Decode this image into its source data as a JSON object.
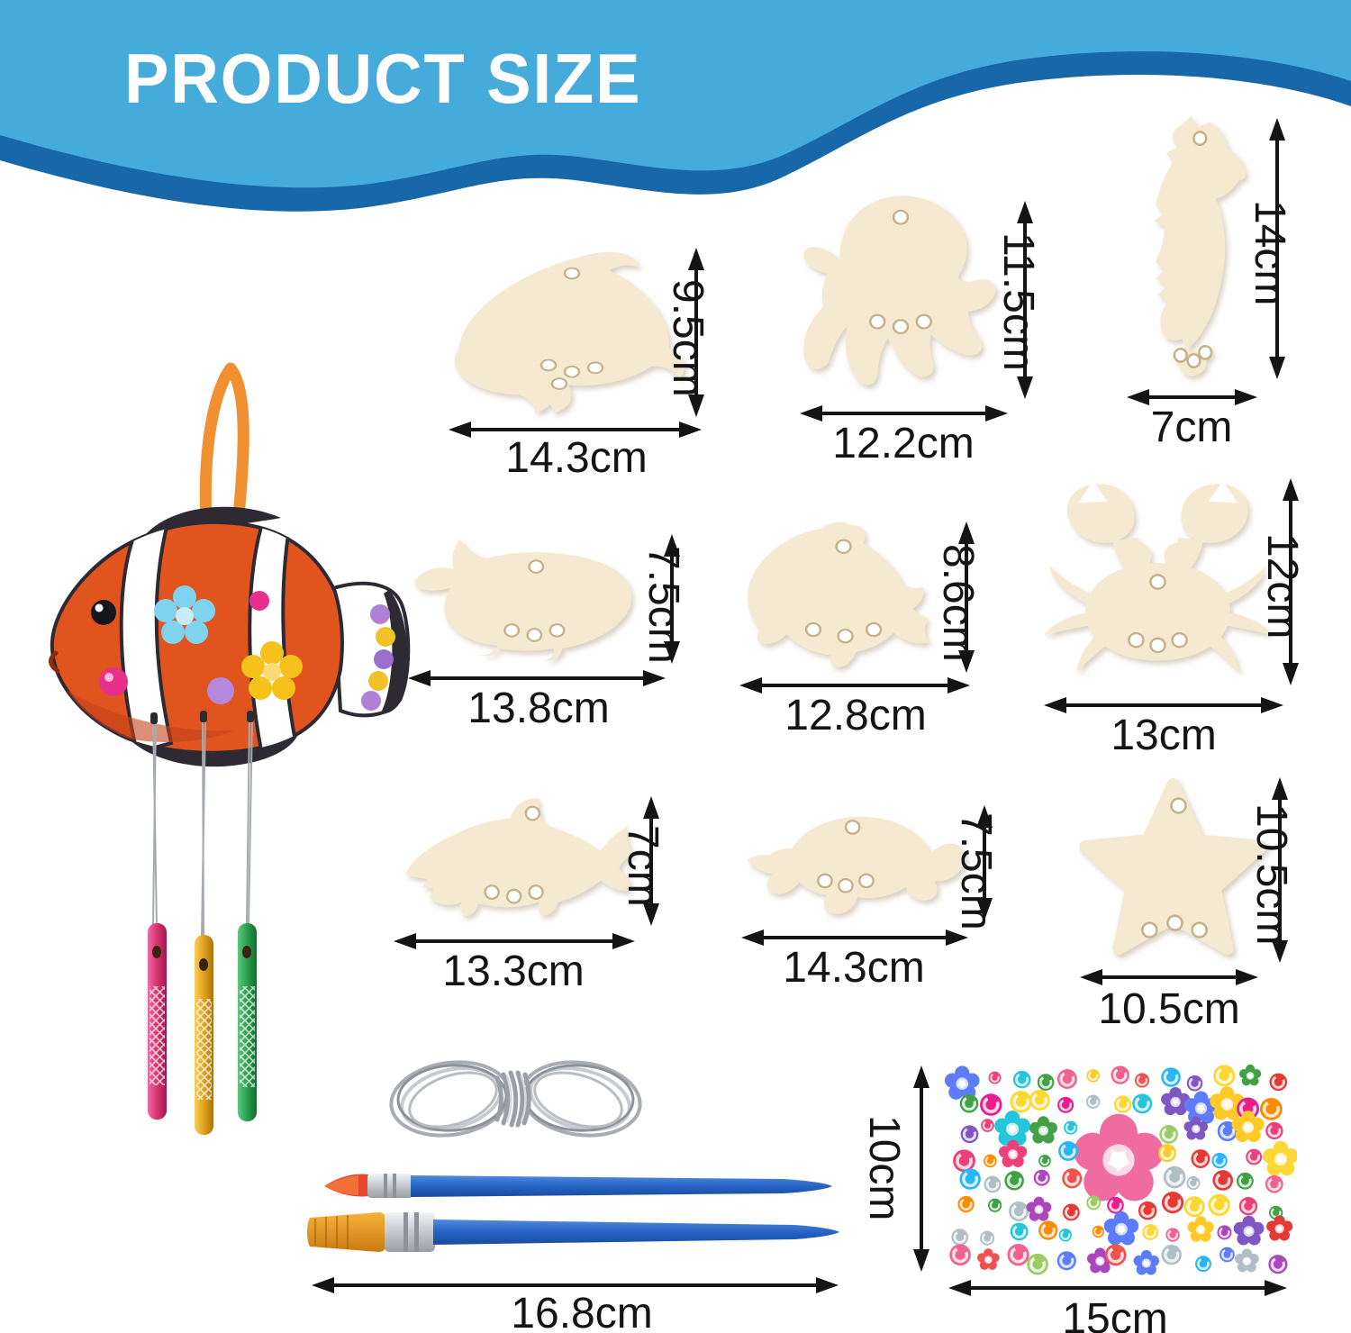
{
  "banner": {
    "title": "PRODUCT SIZE",
    "bg_color": "#45abdb",
    "band_color": "#1767a9"
  },
  "shapes": [
    {
      "id": "dolphin",
      "width_label": "14.3cm",
      "height_label": "9.5cm"
    },
    {
      "id": "octopus",
      "width_label": "12.2cm",
      "height_label": "11.5cm"
    },
    {
      "id": "seahorse",
      "width_label": "7cm",
      "height_label": "14cm"
    },
    {
      "id": "whale",
      "width_label": "13.8cm",
      "height_label": "7.5cm"
    },
    {
      "id": "fish",
      "width_label": "12.8cm",
      "height_label": "8.6cm"
    },
    {
      "id": "crab",
      "width_label": "13cm",
      "height_label": "12cm"
    },
    {
      "id": "shark",
      "width_label": "13.3cm",
      "height_label": "7cm"
    },
    {
      "id": "turtle",
      "width_label": "14.3cm",
      "height_label": "7.5cm"
    },
    {
      "id": "star",
      "width_label": "10.5cm",
      "height_label": "10.5cm"
    }
  ],
  "accessories": {
    "brushes": {
      "length_label": "16.8cm"
    },
    "gem_sheet": {
      "width_label": "15cm",
      "height_label": "10cm"
    },
    "wood_color": "#f5e9d1",
    "chime_colors": [
      "#d6336c",
      "#e0a11c",
      "#2a9d4e"
    ],
    "gem_palette": [
      "#ec407a",
      "#f06292",
      "#e53935",
      "#fb8c00",
      "#fdd835",
      "#9ccc65",
      "#43a047",
      "#26c6da",
      "#29b6f6",
      "#5c7cfa",
      "#7e57c2",
      "#ab47bc",
      "#e91e8c",
      "#b0bec5",
      "#ef5350",
      "#ffca28"
    ]
  }
}
